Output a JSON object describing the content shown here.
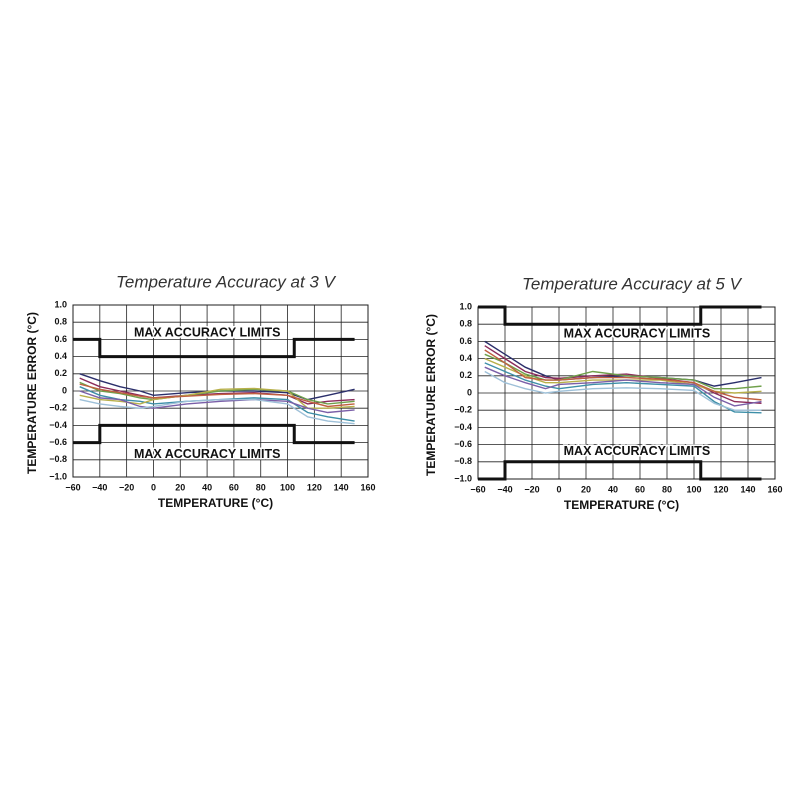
{
  "chart_data": [
    {
      "type": "line",
      "title": "Temperature Accuracy at 3 V",
      "x_label": "TEMPERATURE (°C)",
      "y_label": "TEMPERATURE ERROR (°C)",
      "xlim": [
        -60,
        160
      ],
      "ylim": [
        -1,
        1
      ],
      "grid": true,
      "xticks": [
        {
          "value": -60,
          "label": "−60"
        },
        {
          "value": -40,
          "label": "−40"
        },
        {
          "value": -20,
          "label": "−20"
        },
        0,
        20,
        40,
        60,
        80,
        100,
        120,
        140,
        160
      ],
      "yticks": [
        {
          "value": 1,
          "label": "1.0"
        },
        0.8,
        0.6,
        0.4,
        0.2,
        0,
        {
          "value": -0.2,
          "label": "−0.2"
        },
        {
          "value": -0.4,
          "label": "−0.4"
        },
        {
          "value": -0.6,
          "label": "−0.6"
        },
        {
          "value": -0.8,
          "label": "−0.8"
        },
        {
          "value": -1,
          "label": "−1.0"
        }
      ],
      "x": [
        -55,
        -40,
        -25,
        -10,
        0,
        25,
        50,
        75,
        100,
        115,
        130,
        150
      ],
      "series": [
        {
          "color": "#2b2f6b",
          "values": [
            0.2,
            0.12,
            0.05,
            0.0,
            -0.05,
            -0.02,
            0.0,
            0.0,
            -0.02,
            -0.1,
            -0.05,
            0.02
          ]
        },
        {
          "color": "#8a2b5a",
          "values": [
            0.15,
            0.05,
            0.0,
            -0.05,
            -0.08,
            -0.05,
            -0.03,
            -0.02,
            -0.05,
            -0.15,
            -0.12,
            -0.1
          ]
        },
        {
          "color": "#6fa04a",
          "values": [
            0.1,
            0.0,
            -0.03,
            -0.08,
            -0.1,
            -0.05,
            0.0,
            0.02,
            0.0,
            -0.1,
            -0.15,
            -0.12
          ]
        },
        {
          "color": "#3d8fa8",
          "values": [
            0.05,
            -0.05,
            -0.1,
            -0.12,
            -0.15,
            -0.12,
            -0.1,
            -0.08,
            -0.1,
            -0.25,
            -0.3,
            -0.35
          ]
        },
        {
          "color": "#b8b04a",
          "values": [
            -0.05,
            -0.1,
            -0.12,
            -0.15,
            -0.1,
            -0.05,
            0.02,
            0.03,
            0.0,
            -0.2,
            -0.2,
            -0.18
          ]
        },
        {
          "color": "#7a5fa8",
          "values": [
            0.0,
            -0.08,
            -0.1,
            -0.18,
            -0.2,
            -0.15,
            -0.12,
            -0.1,
            -0.12,
            -0.2,
            -0.25,
            -0.22
          ]
        },
        {
          "color": "#9ec0d8",
          "values": [
            -0.1,
            -0.15,
            -0.18,
            -0.2,
            -0.18,
            -0.12,
            -0.1,
            -0.1,
            -0.15,
            -0.3,
            -0.35,
            -0.38
          ]
        },
        {
          "color": "#c06040",
          "values": [
            0.08,
            0.02,
            -0.02,
            -0.06,
            -0.08,
            -0.06,
            -0.04,
            -0.03,
            -0.05,
            -0.12,
            -0.18,
            -0.15
          ]
        }
      ],
      "limits": [
        {
          "color": "#111111",
          "x": [
            -60,
            -40,
            -40,
            105,
            105,
            150
          ],
          "values": [
            0.6,
            0.6,
            0.4,
            0.4,
            0.6,
            0.6
          ]
        },
        {
          "color": "#111111",
          "x": [
            -60,
            -40,
            -40,
            105,
            105,
            150
          ],
          "values": [
            -0.6,
            -0.6,
            -0.4,
            -0.4,
            -0.6,
            -0.6
          ]
        }
      ],
      "annotations": [
        "MAX ACCURACY LIMITS",
        "MAX ACCURACY LIMITS"
      ]
    },
    {
      "type": "line",
      "title": "Temperature Accuracy at 5 V",
      "x_label": "TEMPERATURE (°C)",
      "y_label": "TEMPERATURE ERROR (°C)",
      "xlim": [
        -60,
        160
      ],
      "ylim": [
        -1,
        1
      ],
      "grid": true,
      "xticks": [
        {
          "value": -60,
          "label": "−60"
        },
        {
          "value": -40,
          "label": "−40"
        },
        {
          "value": -20,
          "label": "−20"
        },
        0,
        20,
        40,
        60,
        80,
        100,
        120,
        140,
        160
      ],
      "yticks": [
        {
          "value": 1,
          "label": "1.0"
        },
        0.8,
        0.6,
        0.4,
        0.2,
        0,
        {
          "value": -0.2,
          "label": "−0.2"
        },
        {
          "value": -0.4,
          "label": "−0.4"
        },
        {
          "value": -0.6,
          "label": "−0.6"
        },
        {
          "value": -0.8,
          "label": "−0.8"
        },
        {
          "value": -1,
          "label": "−1.0"
        }
      ],
      "x": [
        -55,
        -40,
        -25,
        -10,
        0,
        25,
        50,
        75,
        100,
        115,
        130,
        150
      ],
      "series": [
        {
          "color": "#2b2f6b",
          "values": [
            0.6,
            0.45,
            0.3,
            0.2,
            0.15,
            0.18,
            0.2,
            0.18,
            0.15,
            0.08,
            0.12,
            0.18
          ]
        },
        {
          "color": "#8a2b5a",
          "values": [
            0.55,
            0.4,
            0.25,
            0.18,
            0.17,
            0.2,
            0.22,
            0.17,
            0.12,
            0.0,
            -0.1,
            -0.12
          ]
        },
        {
          "color": "#6fa04a",
          "values": [
            0.45,
            0.35,
            0.22,
            0.15,
            0.15,
            0.25,
            0.2,
            0.18,
            0.15,
            0.05,
            0.05,
            0.08
          ]
        },
        {
          "color": "#3d8fa8",
          "values": [
            0.35,
            0.25,
            0.15,
            0.08,
            0.05,
            0.1,
            0.12,
            0.1,
            0.08,
            -0.1,
            -0.22,
            -0.23
          ]
        },
        {
          "color": "#b8b04a",
          "values": [
            0.4,
            0.3,
            0.2,
            0.12,
            0.12,
            0.15,
            0.15,
            0.15,
            0.1,
            0.02,
            0.0,
            0.02
          ]
        },
        {
          "color": "#7a5fa8",
          "values": [
            0.3,
            0.2,
            0.12,
            0.05,
            0.1,
            0.12,
            0.15,
            0.12,
            0.1,
            -0.05,
            -0.15,
            -0.1
          ]
        },
        {
          "color": "#9ec0d8",
          "values": [
            0.25,
            0.12,
            0.05,
            0.0,
            0.02,
            0.05,
            0.06,
            0.05,
            0.03,
            -0.12,
            -0.2,
            -0.2
          ]
        },
        {
          "color": "#c06040",
          "values": [
            0.5,
            0.35,
            0.18,
            0.15,
            0.15,
            0.18,
            0.18,
            0.16,
            0.12,
            0.02,
            -0.05,
            -0.08
          ]
        }
      ],
      "limits": [
        {
          "color": "#111111",
          "x": [
            -60,
            -40,
            -40,
            105,
            105,
            150
          ],
          "values": [
            1.0,
            1.0,
            0.8,
            0.8,
            1.0,
            1.0
          ]
        },
        {
          "color": "#111111",
          "x": [
            -60,
            -40,
            -40,
            105,
            105,
            150
          ],
          "values": [
            -1.0,
            -1.0,
            -0.8,
            -0.8,
            -1.0,
            -1.0
          ]
        }
      ],
      "annotations": [
        "MAX ACCURACY LIMITS",
        "MAX ACCURACY LIMITS"
      ]
    }
  ]
}
